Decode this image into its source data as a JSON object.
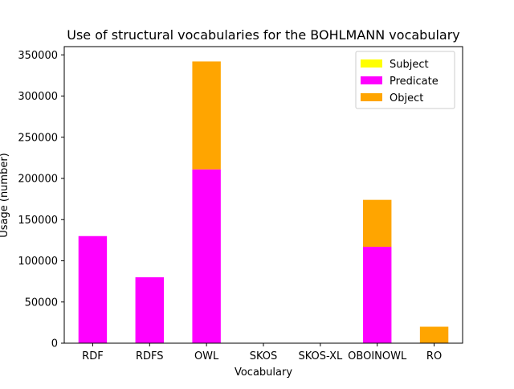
{
  "chart_data": {
    "type": "bar",
    "stacked": true,
    "title": "Use of structural vocabularies for the BOHLMANN vocabulary",
    "xlabel": "Vocabulary",
    "ylabel": "Usage (number)",
    "categories": [
      "RDF",
      "RDFS",
      "OWL",
      "SKOS",
      "SKOS-XL",
      "OBOINOWL",
      "RO"
    ],
    "ylim": [
      0,
      360000
    ],
    "yticks": [
      0,
      50000,
      100000,
      150000,
      200000,
      250000,
      300000,
      350000
    ],
    "ytick_labels": [
      "0",
      "50000",
      "100000",
      "150000",
      "200000",
      "250000",
      "300000",
      "350000"
    ],
    "grid": false,
    "legend_position": "top-right",
    "series": [
      {
        "name": "Subject",
        "color": "#ffff00",
        "values": [
          0,
          0,
          0,
          0,
          0,
          0,
          0
        ]
      },
      {
        "name": "Predicate",
        "color": "#ff00ff",
        "values": [
          130000,
          80000,
          211000,
          0,
          0,
          117000,
          0
        ]
      },
      {
        "name": "Object",
        "color": "#ffa500",
        "values": [
          0,
          0,
          131000,
          0,
          0,
          57000,
          20000
        ]
      }
    ]
  }
}
